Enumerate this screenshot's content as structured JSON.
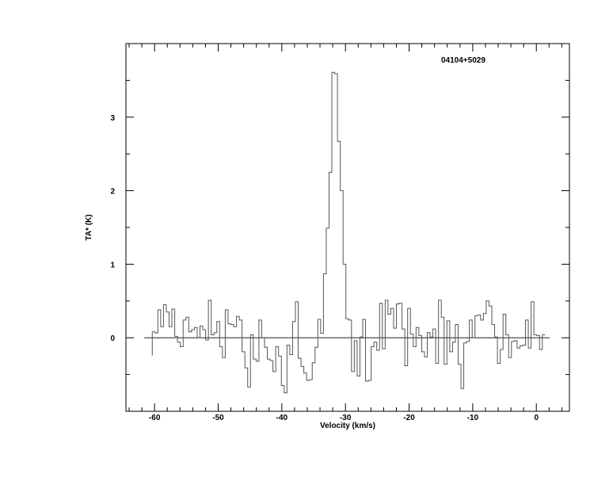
{
  "chart_data": {
    "type": "line",
    "style": "step",
    "annotation": "04104+5029",
    "xlabel": "Velocity (km/s)",
    "ylabel": "TA* (K)",
    "xlim": [
      -64.5,
      5.2
    ],
    "ylim": [
      -1.0,
      4.0
    ],
    "x_ticks": [
      -60,
      -50,
      -40,
      -30,
      -20,
      -10,
      0
    ],
    "x_tick_labels": [
      "-60",
      "-50",
      "-40",
      "-30",
      "-20",
      "-10",
      "0"
    ],
    "x_minor_step": 2,
    "y_ticks": [
      0,
      1,
      2,
      3
    ],
    "y_tick_labels": [
      "0",
      "1",
      "2",
      "3"
    ],
    "y_minor_step": 0.5,
    "grid": false,
    "baseline": {
      "y": 0,
      "x_range": [
        -61.6,
        2.1
      ]
    },
    "x_start": -60.36,
    "channel_width": 0.441,
    "values": [
      0.08,
      0.065,
      0.38,
      0.15,
      0.45,
      0.35,
      0.15,
      0.39,
      0.02,
      -0.06,
      -0.12,
      0.24,
      0.28,
      0.08,
      0.11,
      0.14,
      0.0,
      0.16,
      0.11,
      -0.03,
      0.51,
      0.04,
      0.07,
      0.22,
      -0.12,
      -0.27,
      0.38,
      0.19,
      0.18,
      0.15,
      0.29,
      0.24,
      -0.19,
      -0.41,
      -0.67,
      0.04,
      -0.29,
      -0.32,
      0.24,
      0.0,
      -0.13,
      -0.29,
      -0.31,
      -0.46,
      -0.12,
      -0.25,
      -0.65,
      -0.75,
      -0.1,
      -0.23,
      0.22,
      0.49,
      -0.28,
      -0.39,
      -0.48,
      -0.58,
      -0.57,
      -0.34,
      -0.13,
      0.25,
      0.06,
      0.87,
      1.49,
      2.25,
      3.61,
      3.59,
      2.67,
      2.0,
      1.0,
      0.26,
      0.24,
      -0.46,
      -0.04,
      -0.52,
      0.01,
      0.25,
      -0.59,
      -0.58,
      -0.12,
      -0.06,
      -0.17,
      0.47,
      -0.15,
      0.51,
      0.32,
      0.4,
      0.13,
      0.46,
      0.47,
      0.12,
      -0.38,
      0.4,
      0.05,
      -0.12,
      0.14,
      0.03,
      -0.19,
      -0.26,
      0.07,
      0.01,
      0.12,
      -0.35,
      0.51,
      0.28,
      -0.36,
      0.23,
      -0.19,
      -0.06,
      0.18,
      -0.36,
      -0.69,
      -0.07,
      -0.05,
      0.24,
      0.0,
      0.3,
      0.31,
      0.24,
      0.33,
      0.5,
      0.43,
      0.18,
      0.01,
      -0.35,
      -0.16,
      0.32,
      0.04,
      -0.27,
      -0.05,
      -0.04,
      -0.14,
      -0.11,
      -0.1,
      0.24,
      -0.14,
      0.49,
      0.04,
      0.03,
      -0.16,
      0.04
    ],
    "line_color": "#555555",
    "axis_color": "#000000"
  }
}
